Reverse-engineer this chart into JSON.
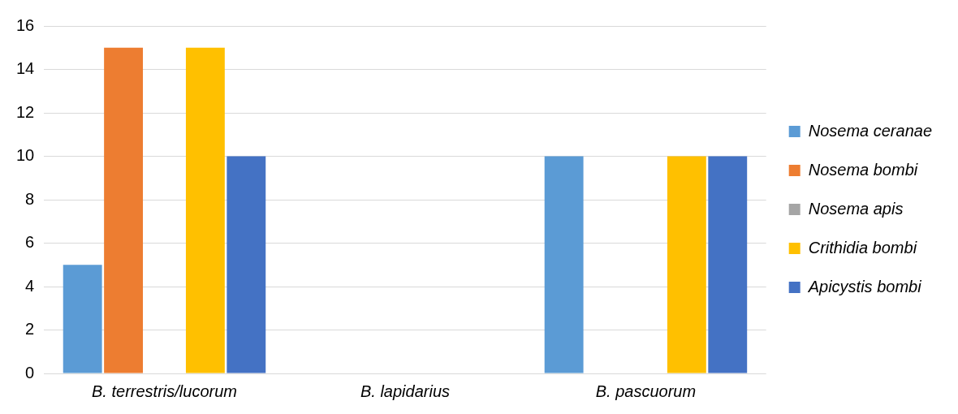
{
  "chart_data": {
    "type": "bar",
    "categories": [
      "B. terrestris/lucorum",
      "B. lapidarius",
      "B. pascuorum"
    ],
    "series": [
      {
        "name": "Nosema ceranae",
        "color": "#5b9bd5",
        "values": [
          5,
          0,
          10
        ]
      },
      {
        "name": "Nosema bombi",
        "color": "#ed7d31",
        "values": [
          15,
          0,
          0
        ]
      },
      {
        "name": "Nosema apis",
        "color": "#a5a5a5",
        "values": [
          0,
          0,
          0
        ]
      },
      {
        "name": "Crithidia bombi",
        "color": "#ffc000",
        "values": [
          15,
          0,
          10
        ]
      },
      {
        "name": "Apicystis bombi",
        "color": "#4472c4",
        "values": [
          10,
          0,
          10
        ]
      }
    ],
    "ylim": [
      0,
      16
    ],
    "yticks": [
      0,
      2,
      4,
      6,
      8,
      10,
      12,
      14,
      16
    ],
    "grid": "y",
    "legend": "right"
  }
}
